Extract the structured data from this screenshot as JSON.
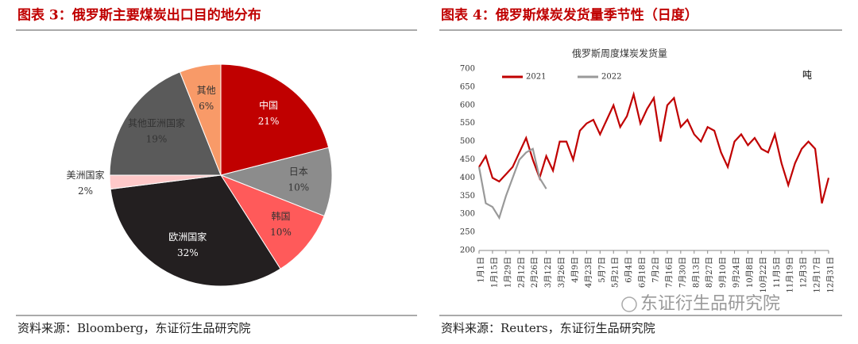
{
  "chart_data": [
    {
      "type": "pie",
      "title": "图表 3：俄罗斯主要煤炭出口目的地分布",
      "categories": [
        "中国",
        "日本",
        "韩国",
        "欧洲国家",
        "美洲国家",
        "其他亚洲国家",
        "其他"
      ],
      "values": [
        21,
        10,
        10,
        32,
        2,
        19,
        6
      ],
      "value_labels": [
        "21%",
        "10%",
        "10%",
        "32%",
        "2%",
        "19%",
        "6%"
      ],
      "colors": [
        "#c00000",
        "#8c8c8c",
        "#ff5a5a",
        "#231f20",
        "#ffc9c9",
        "#5a5a5a",
        "#f89a68"
      ],
      "source": "资料来源：Bloomberg，东证衍生品研究院"
    },
    {
      "type": "line",
      "title": "图表 4：俄罗斯煤炭发货量季节性（日度）",
      "subtitle": "俄罗斯周度煤炭发货量",
      "unit_label": "吨",
      "categories": [
        "1月1日",
        null,
        "1月15日",
        null,
        "1月29日",
        null,
        "2月12日",
        null,
        "2月26日",
        null,
        "3月12日",
        null,
        "3月26日",
        null,
        "4月9日",
        null,
        "4月23日",
        null,
        "5月7日",
        null,
        "5月21日",
        null,
        "6月4日",
        null,
        "6月18日",
        null,
        "7月2日",
        null,
        "7月16日",
        null,
        "7月30日",
        null,
        "8月13日",
        null,
        "8月27日",
        null,
        "9月10日",
        null,
        "9月24日",
        null,
        "10月8日",
        null,
        "10月22日",
        null,
        "11月5日",
        null,
        "11月19日",
        null,
        "12月3日",
        null,
        "12月17日",
        null,
        "12月31日"
      ],
      "series": [
        {
          "name": "2021",
          "color": "#c00000",
          "values": [
            430,
            460,
            400,
            390,
            410,
            430,
            470,
            510,
            450,
            400,
            460,
            420,
            500,
            500,
            450,
            530,
            550,
            560,
            520,
            560,
            600,
            540,
            570,
            630,
            550,
            590,
            620,
            500,
            600,
            620,
            540,
            560,
            520,
            500,
            540,
            530,
            470,
            430,
            500,
            520,
            490,
            510,
            480,
            470,
            520,
            440,
            380,
            440,
            480,
            500,
            480,
            330,
            400
          ]
        },
        {
          "name": "2022",
          "color": "#999999",
          "values": [
            430,
            330,
            320,
            290,
            350,
            400,
            450,
            470,
            480,
            400,
            370,
            null,
            null,
            null,
            null,
            null,
            null,
            null,
            null,
            null,
            null,
            null,
            null,
            null,
            null,
            null,
            null,
            null,
            null,
            null,
            null,
            null,
            null,
            null,
            null,
            null,
            null,
            null,
            null,
            null,
            null,
            null,
            null,
            null,
            null,
            null,
            null,
            null,
            null,
            null,
            null,
            null,
            null
          ]
        }
      ],
      "ylim": [
        200,
        700
      ],
      "yticks": [
        200,
        250,
        300,
        350,
        400,
        450,
        500,
        550,
        600,
        650,
        700
      ],
      "source": "资料来源：Reuters，东证衍生品研究院"
    }
  ],
  "watermark": "东证衍生品研究院"
}
